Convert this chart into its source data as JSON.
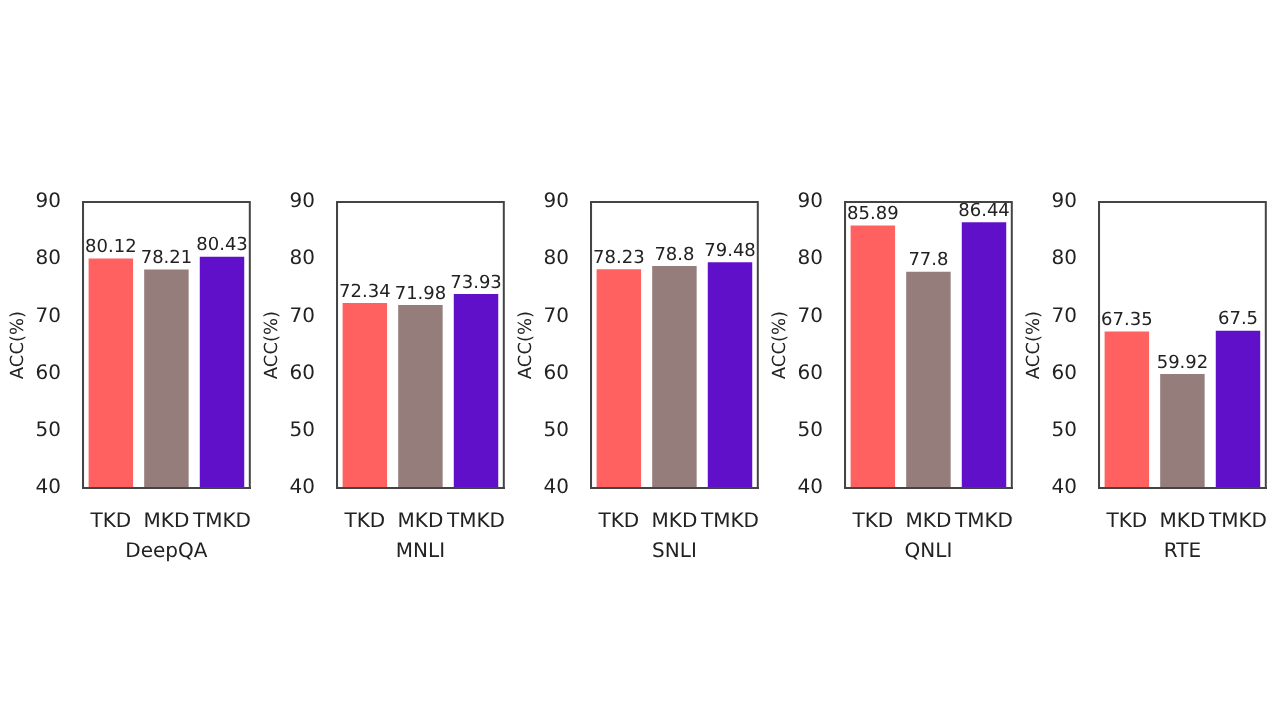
{
  "chart_data": [
    {
      "type": "bar",
      "xlabel": "DeepQA",
      "ylabel": "ACC(%)",
      "categories": [
        "TKD",
        "MKD",
        "TMKD"
      ],
      "values": [
        80.12,
        78.21,
        80.43
      ],
      "colors": [
        "#ff6060",
        "#947d7b",
        "#6010c8"
      ],
      "ylim": [
        40,
        90
      ],
      "yticks": [
        40,
        50,
        60,
        70,
        80,
        90
      ],
      "data_labels": true,
      "grid": false,
      "legend": false
    },
    {
      "type": "bar",
      "xlabel": "MNLI",
      "ylabel": "ACC(%)",
      "categories": [
        "TKD",
        "MKD",
        "TMKD"
      ],
      "values": [
        72.34,
        71.98,
        73.93
      ],
      "colors": [
        "#ff6060",
        "#947d7b",
        "#6010c8"
      ],
      "ylim": [
        40,
        90
      ],
      "yticks": [
        40,
        50,
        60,
        70,
        80,
        90
      ],
      "data_labels": true,
      "grid": false,
      "legend": false
    },
    {
      "type": "bar",
      "xlabel": "SNLI",
      "ylabel": "ACC(%)",
      "categories": [
        "TKD",
        "MKD",
        "TMKD"
      ],
      "values": [
        78.23,
        78.8,
        79.48
      ],
      "colors": [
        "#ff6060",
        "#947d7b",
        "#6010c8"
      ],
      "ylim": [
        40,
        90
      ],
      "yticks": [
        40,
        50,
        60,
        70,
        80,
        90
      ],
      "data_labels": true,
      "grid": false,
      "legend": false
    },
    {
      "type": "bar",
      "xlabel": "QNLI",
      "ylabel": "ACC(%)",
      "categories": [
        "TKD",
        "MKD",
        "TMKD"
      ],
      "values": [
        85.89,
        77.8,
        86.44
      ],
      "colors": [
        "#ff6060",
        "#947d7b",
        "#6010c8"
      ],
      "ylim": [
        40,
        90
      ],
      "yticks": [
        40,
        50,
        60,
        70,
        80,
        90
      ],
      "data_labels": true,
      "grid": false,
      "legend": false
    },
    {
      "type": "bar",
      "xlabel": "RTE",
      "ylabel": "ACC(%)",
      "categories": [
        "TKD",
        "MKD",
        "TMKD"
      ],
      "values": [
        67.35,
        59.92,
        67.5
      ],
      "colors": [
        "#ff6060",
        "#947d7b",
        "#6010c8"
      ],
      "ylim": [
        40,
        90
      ],
      "yticks": [
        40,
        50,
        60,
        70,
        80,
        90
      ],
      "data_labels": true,
      "grid": false,
      "legend": false
    }
  ]
}
